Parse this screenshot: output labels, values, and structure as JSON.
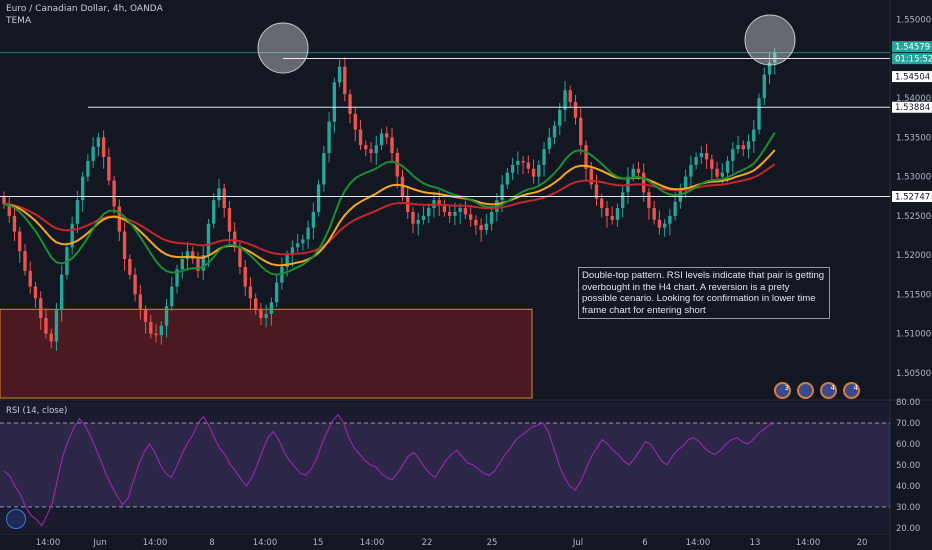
{
  "header": {
    "symbol": "Euro / Canadian Dollar, 4h, OANDA",
    "indicator": "TEMA",
    "rsi_label": "RSI (14, close)"
  },
  "annotation": {
    "text": "Double-top pattern. RSI levels indicate that pair is getting overbought in the H4 chart. A reversion is a prety possible cenario. Looking for confirmation in lower time frame chart for entering short"
  },
  "price_labels": {
    "last": "1.54579",
    "countdown": "01:15:52",
    "levels": [
      "1.54504",
      "1.53884",
      "1.52747"
    ]
  },
  "event_icons": [
    "3",
    "",
    "4",
    "4"
  ],
  "colors": {
    "background": "#131722",
    "up": "#26a69a",
    "down": "#ef5350",
    "ma_green": "#1b8f2f",
    "ma_orange": "#f5a623",
    "ma_red": "#c1272d",
    "rsi": "#9c27b0",
    "supply_zone": "#4a1a20"
  },
  "chart_data": [
    {
      "type": "candlestick",
      "yticks": [
        "1.55000",
        "1.54500",
        "1.54000",
        "1.53500",
        "1.53000",
        "1.52500",
        "1.52000",
        "1.51500",
        "1.51000",
        "1.50500"
      ],
      "xticks": [
        "14:00",
        "Jun",
        "14:00",
        "8",
        "14:00",
        "15",
        "14:00",
        "22",
        "25",
        "Jul",
        "6",
        "14:00",
        "13",
        "14:00",
        "20"
      ],
      "ylim": [
        1.5018,
        1.5525
      ],
      "horizontal_levels": [
        1.54504,
        1.53884,
        1.52747,
        1.54579
      ],
      "zone": {
        "y_top": 1.5131,
        "y_bottom": 1.5018
      },
      "close": [
        1.5265,
        1.525,
        1.523,
        1.5205,
        1.518,
        1.516,
        1.5145,
        1.512,
        1.51,
        1.509,
        1.513,
        1.5175,
        1.521,
        1.524,
        1.527,
        1.53,
        1.532,
        1.5338,
        1.535,
        1.5325,
        1.5295,
        1.5262,
        1.523,
        1.5195,
        1.5175,
        1.515,
        1.513,
        1.5115,
        1.51,
        1.5098,
        1.511,
        1.5135,
        1.516,
        1.5182,
        1.5195,
        1.5205,
        1.5195,
        1.518,
        1.52,
        1.524,
        1.527,
        1.5285,
        1.526,
        1.523,
        1.521,
        1.5185,
        1.516,
        1.5145,
        1.513,
        1.512,
        1.5125,
        1.514,
        1.5165,
        1.5185,
        1.52,
        1.521,
        1.5215,
        1.522,
        1.5235,
        1.5255,
        1.529,
        1.533,
        1.537,
        1.542,
        1.544,
        1.5405,
        1.538,
        1.536,
        1.534,
        1.5335,
        1.533,
        1.534,
        1.5355,
        1.535,
        1.533,
        1.53,
        1.5275,
        1.5255,
        1.524,
        1.5245,
        1.525,
        1.526,
        1.527,
        1.5265,
        1.5255,
        1.525,
        1.5255,
        1.526,
        1.5252,
        1.5245,
        1.5238,
        1.5232,
        1.524,
        1.5255,
        1.527,
        1.529,
        1.5305,
        1.5315,
        1.532,
        1.5318,
        1.531,
        1.53,
        1.5315,
        1.5335,
        1.535,
        1.5365,
        1.5385,
        1.541,
        1.5395,
        1.5375,
        1.534,
        1.531,
        1.529,
        1.5272,
        1.526,
        1.525,
        1.5245,
        1.526,
        1.528,
        1.53,
        1.531,
        1.5305,
        1.528,
        1.526,
        1.5245,
        1.5235,
        1.524,
        1.525,
        1.5268,
        1.5285,
        1.53,
        1.5315,
        1.5325,
        1.533,
        1.5322,
        1.531,
        1.53,
        1.5305,
        1.532,
        1.5335,
        1.534,
        1.5335,
        1.5345,
        1.536,
        1.54,
        1.543,
        1.5445,
        1.5458
      ]
    },
    {
      "type": "line",
      "name": "RSI (14, close)",
      "yticks": [
        "80.00",
        "70.00",
        "60.00",
        "50.00",
        "40.00",
        "30.00",
        "20.00"
      ],
      "ylim": [
        18,
        80
      ],
      "bands": [
        70,
        30
      ],
      "values": [
        47,
        45,
        40,
        36,
        30,
        26,
        24,
        21,
        26,
        32,
        44,
        55,
        62,
        68,
        72,
        69,
        64,
        58,
        52,
        45,
        40,
        35,
        31,
        34,
        42,
        50,
        56,
        60,
        56,
        50,
        46,
        44,
        49,
        55,
        60,
        64,
        70,
        73,
        69,
        63,
        58,
        55,
        50,
        47,
        43,
        40,
        44,
        50,
        57,
        63,
        66,
        62,
        56,
        52,
        49,
        46,
        45,
        48,
        53,
        60,
        66,
        71,
        74,
        70,
        63,
        58,
        55,
        52,
        50,
        49,
        46,
        44,
        43,
        46,
        50,
        54,
        56,
        53,
        49,
        46,
        44,
        48,
        52,
        55,
        57,
        54,
        51,
        50,
        48,
        46,
        45,
        47,
        51,
        55,
        58,
        62,
        64,
        66,
        68,
        69,
        70,
        66,
        58,
        50,
        44,
        40,
        38,
        42,
        48,
        54,
        58,
        62,
        60,
        57,
        55,
        52,
        50,
        53,
        57,
        61,
        60,
        56,
        52,
        50,
        54,
        57,
        59,
        62,
        63,
        61,
        58,
        56,
        55,
        57,
        60,
        62,
        63,
        61,
        60,
        62,
        65,
        67,
        69,
        70
      ]
    }
  ]
}
